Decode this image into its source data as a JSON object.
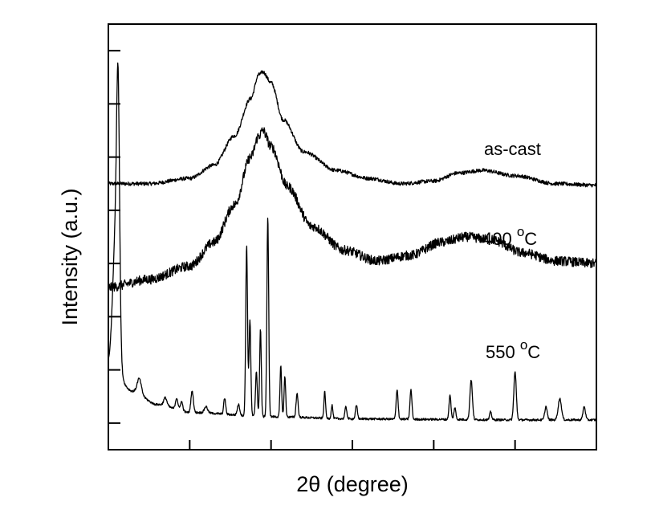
{
  "chart_data": {
    "type": "line",
    "title": "",
    "xlabel": "2θ (degree)",
    "ylabel": "Intensity  (a.u.)",
    "xlim": [
      0,
      6
    ],
    "ylim": [
      0,
      8
    ],
    "x_ticks": [
      1,
      2,
      3,
      4,
      5
    ],
    "y_ticks": [
      0.5,
      1.5,
      2.5,
      3.5,
      4.5,
      5.5,
      6.5,
      7.5
    ],
    "tick_labels_shown": false,
    "grid": false,
    "legend": "none",
    "series": [
      {
        "name": "as-cast",
        "label": "as-cast",
        "label_superscript": "",
        "noise": 0.035,
        "points": [
          [
            0,
            5.0
          ],
          [
            0.5,
            5.0
          ],
          [
            1.0,
            5.1
          ],
          [
            1.3,
            5.35
          ],
          [
            1.55,
            5.9
          ],
          [
            1.75,
            6.6
          ],
          [
            1.85,
            7.05
          ],
          [
            1.9,
            7.1
          ],
          [
            2.0,
            6.9
          ],
          [
            2.15,
            6.2
          ],
          [
            2.4,
            5.6
          ],
          [
            2.8,
            5.25
          ],
          [
            3.2,
            5.1
          ],
          [
            3.6,
            5.0
          ],
          [
            4.0,
            5.05
          ],
          [
            4.3,
            5.2
          ],
          [
            4.6,
            5.25
          ],
          [
            5.0,
            5.15
          ],
          [
            5.5,
            5.0
          ],
          [
            6.0,
            4.97
          ]
        ]
      },
      {
        "name": "400 °C",
        "label": "400 ",
        "label_superscript": "o",
        "label_suffix": "C",
        "noise": 0.09,
        "points": [
          [
            0.0,
            3.05
          ],
          [
            0.5,
            3.2
          ],
          [
            1.0,
            3.45
          ],
          [
            1.3,
            3.9
          ],
          [
            1.55,
            4.6
          ],
          [
            1.75,
            5.5
          ],
          [
            1.85,
            5.9
          ],
          [
            1.9,
            6.0
          ],
          [
            2.0,
            5.7
          ],
          [
            2.2,
            4.95
          ],
          [
            2.5,
            4.2
          ],
          [
            2.9,
            3.75
          ],
          [
            3.3,
            3.55
          ],
          [
            3.7,
            3.65
          ],
          [
            4.1,
            3.9
          ],
          [
            4.4,
            4.0
          ],
          [
            4.7,
            3.95
          ],
          [
            5.1,
            3.7
          ],
          [
            5.5,
            3.55
          ],
          [
            6.0,
            3.5
          ]
        ]
      },
      {
        "name": "550 °C",
        "label": "550 ",
        "label_superscript": "o",
        "label_suffix": "C",
        "noise": 0.02,
        "baseline": [
          [
            0,
            1.6
          ],
          [
            0.3,
            1.1
          ],
          [
            0.6,
            0.85
          ],
          [
            1.0,
            0.7
          ],
          [
            2.0,
            0.62
          ],
          [
            3.0,
            0.58
          ],
          [
            4.0,
            0.57
          ],
          [
            5.0,
            0.56
          ],
          [
            6.0,
            0.56
          ]
        ],
        "peaks": [
          [
            0.09,
            2.55,
            0.035
          ],
          [
            0.12,
            4.0,
            0.018
          ],
          [
            0.38,
            0.28,
            0.025
          ],
          [
            0.7,
            0.15,
            0.02
          ],
          [
            0.84,
            0.22,
            0.015
          ],
          [
            0.9,
            0.18,
            0.015
          ],
          [
            1.03,
            0.4,
            0.015
          ],
          [
            1.2,
            0.12,
            0.02
          ],
          [
            1.43,
            0.3,
            0.012
          ],
          [
            1.6,
            0.2,
            0.015
          ],
          [
            1.7,
            3.2,
            0.011
          ],
          [
            1.74,
            1.8,
            0.011
          ],
          [
            1.82,
            0.85,
            0.011
          ],
          [
            1.87,
            1.65,
            0.01
          ],
          [
            1.96,
            3.75,
            0.011
          ],
          [
            2.12,
            0.95,
            0.01
          ],
          [
            2.17,
            0.75,
            0.01
          ],
          [
            2.32,
            0.45,
            0.012
          ],
          [
            2.66,
            0.5,
            0.01
          ],
          [
            2.75,
            0.25,
            0.01
          ],
          [
            2.92,
            0.22,
            0.012
          ],
          [
            3.05,
            0.25,
            0.012
          ],
          [
            3.55,
            0.55,
            0.012
          ],
          [
            3.72,
            0.55,
            0.012
          ],
          [
            4.2,
            0.45,
            0.012
          ],
          [
            4.26,
            0.22,
            0.012
          ],
          [
            4.46,
            0.75,
            0.015
          ],
          [
            4.7,
            0.15,
            0.012
          ],
          [
            5.0,
            0.9,
            0.015
          ],
          [
            5.38,
            0.25,
            0.015
          ],
          [
            5.55,
            0.4,
            0.02
          ],
          [
            5.85,
            0.25,
            0.015
          ]
        ]
      }
    ]
  }
}
